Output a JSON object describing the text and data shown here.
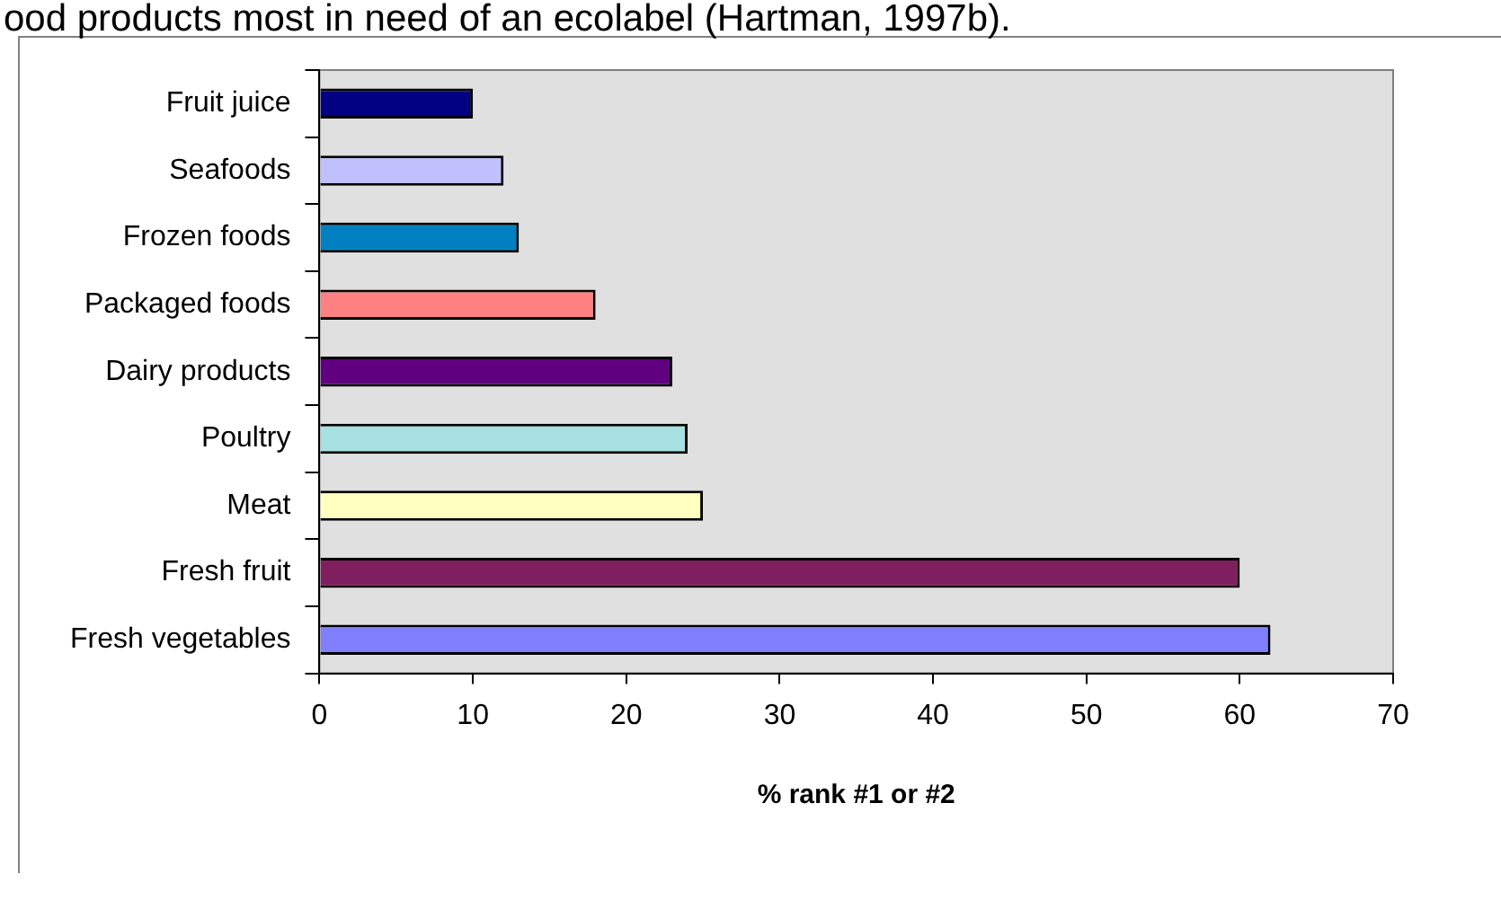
{
  "chart_data": {
    "type": "bar",
    "orientation": "horizontal",
    "title": "ood products most in need of an ecolabel (Hartman, 1997b).",
    "xlabel": "% rank #1 or #2",
    "categories": [
      "Fruit juice",
      "Seafoods",
      "Frozen foods",
      "Packaged foods",
      "Dairy products",
      "Poultry",
      "Meat",
      "Fresh fruit",
      "Fresh vegetables"
    ],
    "values": [
      10,
      12,
      13,
      18,
      23,
      24,
      25,
      60,
      62
    ],
    "colors": [
      "#000080",
      "#c0c0ff",
      "#0080c0",
      "#ff8080",
      "#600080",
      "#a6e0e0",
      "#ffffc0",
      "#801f5f",
      "#8080ff"
    ],
    "xlim": [
      0,
      70
    ],
    "xticks": [
      0,
      10,
      20,
      30,
      40,
      50,
      60,
      70
    ],
    "grid": false,
    "legend": false
  }
}
